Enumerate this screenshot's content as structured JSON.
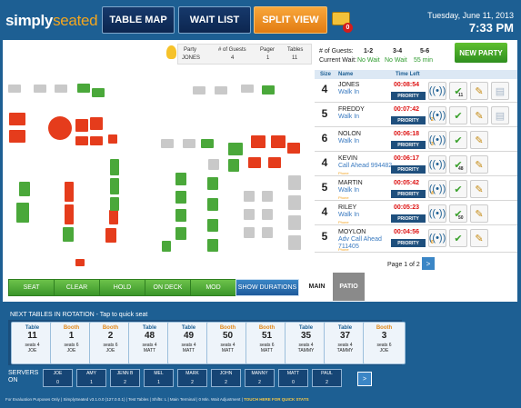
{
  "brand": {
    "name_a": "simply",
    "name_b": "seated"
  },
  "nav": {
    "table_map": "TABLE MAP",
    "wait_list": "WAIT LIST",
    "split_view": "SPLIT VIEW",
    "notif_count": "0"
  },
  "clock": {
    "date": "Tuesday, June 11, 2013",
    "time": "7:33 PM"
  },
  "party_info": {
    "h_party": "Party",
    "h_guests": "# of Guests",
    "h_pager": "Pager",
    "h_tables": "Tables",
    "party": "JONES",
    "guests": "4",
    "pager": "1",
    "tables": "11"
  },
  "wait_times": {
    "guests_label": "# of Guests:",
    "current_label": "Current Wait:",
    "h1": "1-2",
    "h2": "3-4",
    "h3": "5-6",
    "v1": "No Wait",
    "v2": "No Wait",
    "v3": "55 min"
  },
  "new_party": "NEW PARTY",
  "waitlist": {
    "h_size": "Size",
    "h_name": "Name",
    "h_time": "Time Left",
    "rows": [
      {
        "size": "4",
        "name": "JONES",
        "status": "Walk In",
        "phone": "",
        "time": "00:08:54",
        "priority": "PRIORITY",
        "pager": "",
        "check": "11"
      },
      {
        "size": "5",
        "name": "FREDDY",
        "status": "Walk In",
        "phone": "",
        "time": "00:07:42",
        "priority": "PRIORITY",
        "pager": "2",
        "check": ""
      },
      {
        "size": "6",
        "name": "NOLON",
        "status": "Walk In",
        "phone": "",
        "time": "00:06:18",
        "priority": "PRIORITY",
        "pager": "3",
        "check": ""
      },
      {
        "size": "4",
        "name": "KEVIN",
        "status": "Call Ahead 994482",
        "phone": "Phone",
        "time": "00:06:17",
        "priority": "PRIORITY",
        "pager": "",
        "check": "48"
      },
      {
        "size": "5",
        "name": "MARTIN",
        "status": "Walk In",
        "phone": "Phone",
        "time": "00:05:42",
        "priority": "PRIORITY",
        "pager": "4",
        "check": ""
      },
      {
        "size": "4",
        "name": "RILEY",
        "status": "Walk In",
        "phone": "Phone",
        "time": "00:05:23",
        "priority": "PRIORITY",
        "pager": "",
        "check": "50"
      },
      {
        "size": "5",
        "name": "MOYLON",
        "status": "Adv Call Ahead 711405",
        "phone": "Phone",
        "time": "00:04:56",
        "priority": "PRIORITY",
        "pager": "6",
        "check": ""
      }
    ],
    "pagination": "Page 1 of 2",
    "next": ">"
  },
  "actions": {
    "seat": "SEAT",
    "clear": "CLEAR",
    "hold": "HOLD",
    "on_deck": "ON DECK",
    "mod": "MOD",
    "show_durations": "SHOW DURATIONS"
  },
  "tabs": {
    "main": "MAIN",
    "patio": "PATIO"
  },
  "rotation": {
    "title": "NEXT TABLES IN ROTATION - Tap to quick seat",
    "cards": [
      {
        "type": "Table",
        "num": "11",
        "seats": "seats 4",
        "person": "JOE"
      },
      {
        "type": "Booth",
        "num": "1",
        "seats": "seats 6",
        "person": "JOE"
      },
      {
        "type": "Booth",
        "num": "2",
        "seats": "seats 6",
        "person": "JOE"
      },
      {
        "type": "Table",
        "num": "48",
        "seats": "seats 4",
        "person": "MATT"
      },
      {
        "type": "Table",
        "num": "49",
        "seats": "seats 4",
        "person": "MATT"
      },
      {
        "type": "Booth",
        "num": "50",
        "seats": "seats 4",
        "person": "MATT"
      },
      {
        "type": "Booth",
        "num": "51",
        "seats": "seats 6",
        "person": "MATT"
      },
      {
        "type": "Table",
        "num": "35",
        "seats": "seats 4",
        "person": "TAMMY"
      },
      {
        "type": "Table",
        "num": "37",
        "seats": "seats 4",
        "person": "TAMMY"
      },
      {
        "type": "Booth",
        "num": "3",
        "seats": "seats 6",
        "person": "JOE"
      }
    ]
  },
  "servers": {
    "label": "SERVERS ON",
    "list": [
      {
        "name": "JOE",
        "count": "0"
      },
      {
        "name": "AMY",
        "count": "1"
      },
      {
        "name": "JENN B",
        "count": "2"
      },
      {
        "name": "MEL",
        "count": "1"
      },
      {
        "name": "MARK",
        "count": "2"
      },
      {
        "name": "JOHN",
        "count": "2"
      },
      {
        "name": "MANNY",
        "count": "2"
      },
      {
        "name": "MATT",
        "count": "0"
      },
      {
        "name": "PAUL",
        "count": "2"
      }
    ],
    "next": ">"
  },
  "footer": {
    "text": "For Evaluation Purposes Only | SimplySeated v3.1.0.0 (127.0.0.1) | Test Tables | Shifts: L | Main Terminal | 0 Min. Wait Adjustment |",
    "quick_stats": "TOUCH HERE FOR QUICK STATS"
  }
}
